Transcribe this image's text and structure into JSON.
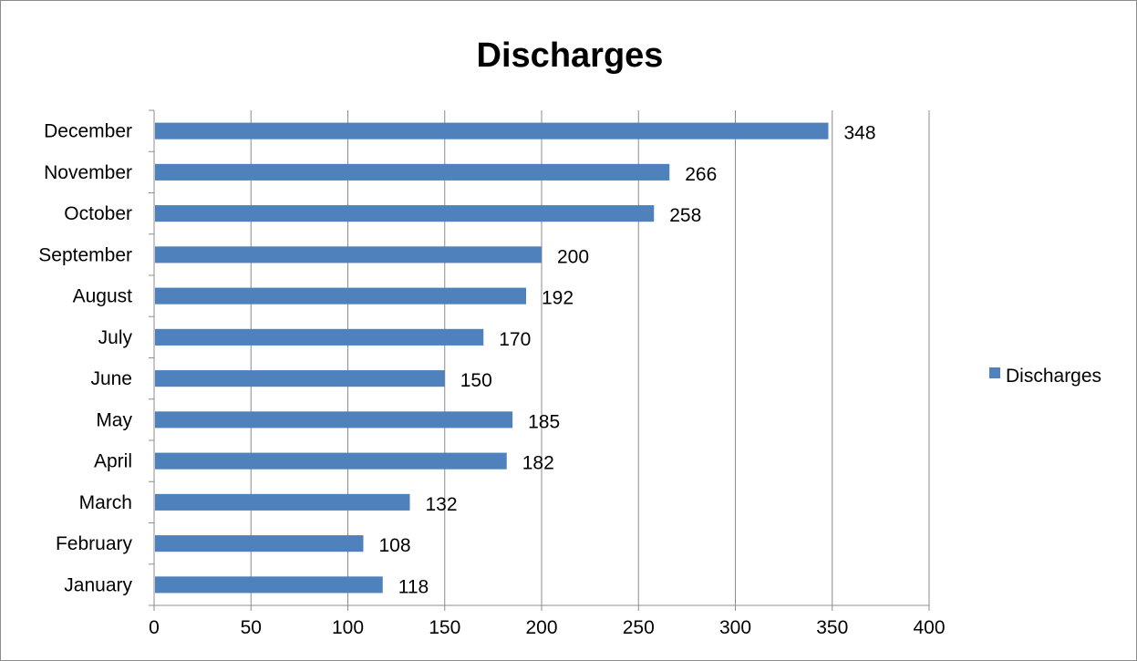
{
  "chart_data": {
    "type": "bar",
    "orientation": "horizontal",
    "title": "Discharges",
    "xlabel": "",
    "ylabel": "",
    "categories": [
      "January",
      "February",
      "March",
      "April",
      "May",
      "June",
      "July",
      "August",
      "September",
      "October",
      "November",
      "December"
    ],
    "series": [
      {
        "name": "Discharges",
        "color": "#4f81bd",
        "values": [
          118,
          108,
          132,
          182,
          185,
          150,
          170,
          192,
          200,
          258,
          266,
          348
        ]
      }
    ],
    "xlim": [
      0,
      400
    ],
    "xticks": [
      "0",
      "50",
      "100",
      "150",
      "200",
      "250",
      "300",
      "350",
      "400"
    ],
    "grid": "vertical",
    "gridline_color": "#8c8c8c",
    "legend_position": "right"
  }
}
